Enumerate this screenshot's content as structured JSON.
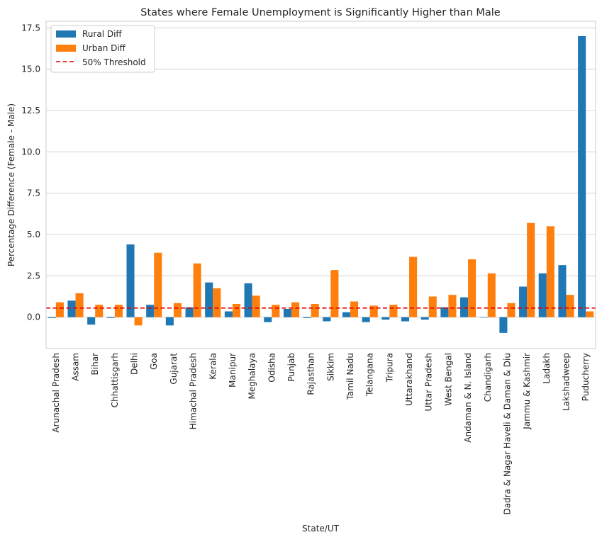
{
  "chart_data": {
    "type": "bar",
    "title": "States where Female Unemployment is Significantly Higher than Male",
    "xlabel": "State/UT",
    "ylabel": "Percentage Difference (Female - Male)",
    "ylim": [
      -1.9,
      17.9
    ],
    "yticks": [
      0.0,
      2.5,
      5.0,
      7.5,
      10.0,
      12.5,
      15.0,
      17.5
    ],
    "ytick_labels": [
      "0.0",
      "2.5",
      "5.0",
      "7.5",
      "10.0",
      "12.5",
      "15.0",
      "17.5"
    ],
    "grid": true,
    "legend_position": "top-left",
    "categories": [
      "Arunachal Pradesh",
      "Assam",
      "Bihar",
      "Chhattisgarh",
      "Delhi",
      "Goa",
      "Gujarat",
      "Himachal Pradesh",
      "Kerala",
      "Manipur",
      "Meghalaya",
      "Odisha",
      "Punjab",
      "Rajasthan",
      "Sikkim",
      "Tamil Nadu",
      "Telangana",
      "Tripura",
      "Uttarakhand",
      "Uttar Pradesh",
      "West Bengal",
      "Andaman & N. Island",
      "Chandigarh",
      "Dadra & Nagar Haveli & Daman & Diu",
      "Jammu & Kashmir",
      "Ladakh",
      "Lakshadweep",
      "Puducherry"
    ],
    "series": [
      {
        "name": "Rural Diff",
        "color": "#1f77b4",
        "values": [
          -0.05,
          1.0,
          -0.45,
          -0.05,
          4.4,
          0.75,
          -0.5,
          0.6,
          2.1,
          0.35,
          2.05,
          -0.3,
          0.5,
          -0.05,
          -0.25,
          0.3,
          -0.3,
          -0.15,
          -0.25,
          -0.15,
          0.6,
          1.2,
          0.0,
          -0.95,
          1.85,
          2.65,
          3.15,
          17.0
        ]
      },
      {
        "name": "Urban Diff",
        "color": "#ff7f0e",
        "values": [
          0.9,
          1.45,
          0.75,
          0.75,
          -0.5,
          3.9,
          0.85,
          3.25,
          1.75,
          0.8,
          1.3,
          0.75,
          0.9,
          0.8,
          2.85,
          0.95,
          0.7,
          0.75,
          3.65,
          1.25,
          1.35,
          3.5,
          2.65,
          0.85,
          5.7,
          5.5,
          1.35,
          0.35
        ]
      }
    ],
    "threshold": {
      "name": "50% Threshold",
      "value": 0.55,
      "color": "#e00000"
    }
  }
}
